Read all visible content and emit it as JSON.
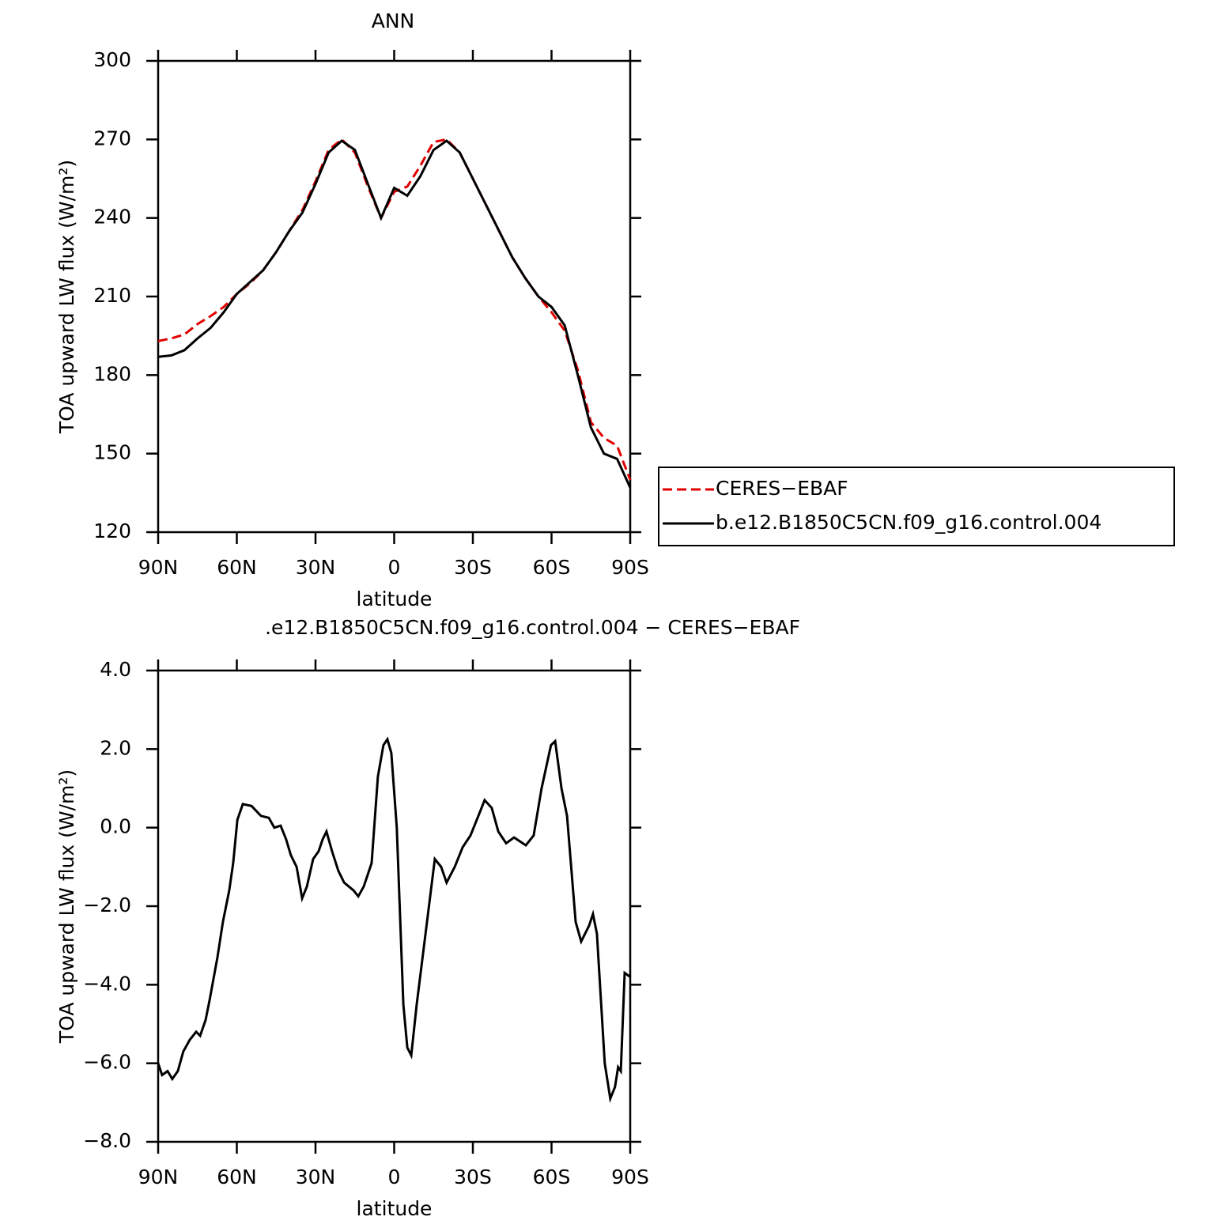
{
  "chart_data": [
    {
      "type": "line",
      "title": "ANN",
      "xlabel": "latitude",
      "ylabel": "TOA upward LW flux (W/m²)",
      "x": [
        90,
        85,
        80,
        75,
        70,
        65,
        60,
        55,
        50,
        45,
        40,
        35,
        30,
        25,
        20,
        15,
        10,
        5,
        0,
        -5,
        -10,
        -15,
        -20,
        -25,
        -30,
        -35,
        -40,
        -45,
        -50,
        -55,
        -60,
        -65,
        -70,
        -75,
        -80,
        -85,
        -90
      ],
      "series": [
        {
          "name": "CERES−EBAF",
          "color": "#e00000",
          "linestyle": "dashed",
          "values": [
            193,
            194,
            195.5,
            199.5,
            202.5,
            206,
            211,
            215,
            220,
            227,
            235,
            243,
            254,
            266,
            270,
            265,
            252,
            240,
            250,
            252,
            260,
            269,
            270,
            265,
            255,
            245,
            235,
            225,
            217,
            210,
            204,
            197,
            182,
            162,
            156,
            153,
            140
          ]
        },
        {
          "name": "b.e12.B1850C5CN.f09_g16.control.004",
          "color": "#000000",
          "linestyle": "solid",
          "values": [
            187,
            187.5,
            189.5,
            194,
            198,
            204,
            211,
            215.5,
            220,
            227,
            235,
            242,
            253,
            265,
            269.5,
            266,
            253,
            240,
            251.5,
            248.5,
            256,
            266,
            269.5,
            265,
            255,
            245,
            235,
            225,
            217,
            210,
            206,
            199,
            180,
            160,
            150,
            148,
            137
          ]
        }
      ],
      "xlim": [
        90,
        -90
      ],
      "xticks": [
        {
          "value": 90,
          "label": "90N"
        },
        {
          "value": 60,
          "label": "60N"
        },
        {
          "value": 30,
          "label": "30N"
        },
        0,
        {
          "value": -30,
          "label": "30S"
        },
        {
          "value": -60,
          "label": "60S"
        },
        {
          "value": -90,
          "label": "90S"
        }
      ],
      "ylim": [
        120,
        300
      ],
      "yticks": [
        120,
        150,
        180,
        210,
        240,
        270,
        300
      ],
      "legend": "right"
    },
    {
      "type": "line",
      "title": ".e12.B1850C5CN.f09_g16.control.004 − CERES−EBAF",
      "xlabel": "latitude",
      "ylabel": "TOA upward LW flux (W/m²)",
      "x": [
        90,
        88.5,
        86.4,
        84.6,
        82.5,
        80.4,
        77.9,
        75.5,
        74,
        71.9,
        70.4,
        67.4,
        65.3,
        62.9,
        61.4,
        59.8,
        57.7,
        54.4,
        50.8,
        47.8,
        45.7,
        43.3,
        41.2,
        39.4,
        37.2,
        35.1,
        33.3,
        30.9,
        28.8,
        27.3,
        25.8,
        23.7,
        21.3,
        19.1,
        15.5,
        13.7,
        11.6,
        8.6,
        6.2,
        4.1,
        2.6,
        1.1,
        -1,
        -3.5,
        -5,
        -6.5,
        -8.6,
        -12.5,
        -15.5,
        -17.9,
        -20,
        -23.1,
        -26.1,
        -29.1,
        -32.1,
        -34.5,
        -37.2,
        -39.7,
        -42.7,
        -45.7,
        -50.2,
        -53.2,
        -56.2,
        -59.8,
        -61.4,
        -63.8,
        -65.9,
        -69.2,
        -71.3,
        -74.3,
        -75.8,
        -77.3,
        -80.3,
        -82.4,
        -84.2,
        -85.4,
        -86.4,
        -87.9,
        -90
      ],
      "values": [
        -6,
        -6.3,
        -6.2,
        -6.4,
        -6.2,
        -5.7,
        -5.4,
        -5.2,
        -5.3,
        -4.9,
        -4.4,
        -3.3,
        -2.4,
        -1.6,
        -0.9,
        0.2,
        0.6,
        0.55,
        0.3,
        0.25,
        0,
        0.05,
        -0.3,
        -0.7,
        -1,
        -1.8,
        -1.5,
        -0.8,
        -0.6,
        -0.3,
        -0.1,
        -0.6,
        -1.1,
        -1.4,
        -1.6,
        -1.75,
        -1.5,
        -0.9,
        1.3,
        2.1,
        2.25,
        1.9,
        0,
        -4.5,
        -5.6,
        -5.8,
        -4.5,
        -2.4,
        -0.8,
        -1,
        -1.4,
        -1,
        -0.5,
        -0.2,
        0.3,
        0.7,
        0.5,
        -0.1,
        -0.4,
        -0.25,
        -0.45,
        -0.2,
        1,
        2.1,
        2.2,
        1,
        0.3,
        -2.4,
        -2.9,
        -2.5,
        -2.2,
        -2.7,
        -6,
        -6.9,
        -6.6,
        -6.1,
        -6.2,
        -3.7,
        -3.8
      ],
      "color": "#000000",
      "linestyle": "solid",
      "xlim": [
        90,
        -90
      ],
      "xticks": [
        {
          "value": 90,
          "label": "90N"
        },
        {
          "value": 60,
          "label": "60N"
        },
        {
          "value": 30,
          "label": "30N"
        },
        0,
        {
          "value": -30,
          "label": "30S"
        },
        {
          "value": -60,
          "label": "60S"
        },
        {
          "value": -90,
          "label": "90S"
        }
      ],
      "ylim": [
        -8,
        4
      ],
      "yticks": [
        {
          "value": -8,
          "label": "−8.0"
        },
        {
          "value": -6,
          "label": "−6.0"
        },
        {
          "value": -4,
          "label": "−4.0"
        },
        {
          "value": -2,
          "label": "−2.0"
        },
        {
          "value": 0,
          "label": "0.0"
        },
        {
          "value": 2,
          "label": "2.0"
        },
        {
          "value": 4,
          "label": "4.0"
        }
      ]
    }
  ]
}
